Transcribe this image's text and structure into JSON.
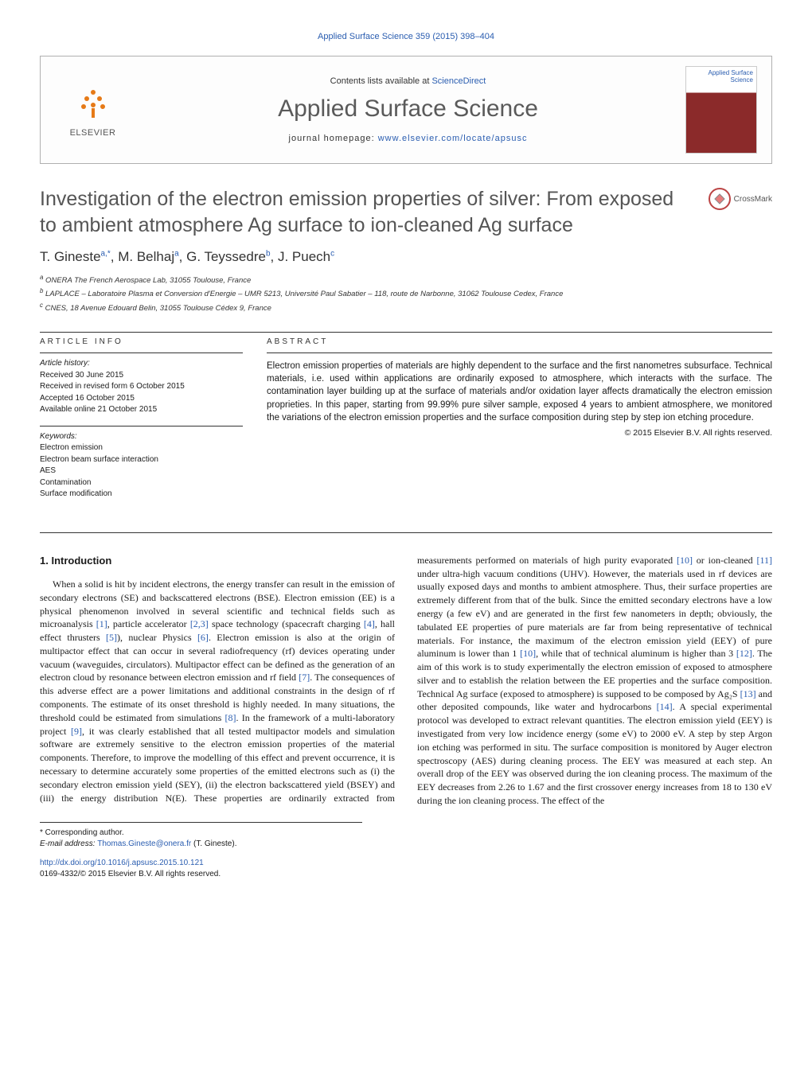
{
  "header_ref": "Applied Surface Science 359 (2015) 398–404",
  "banner": {
    "publisher": "ELSEVIER",
    "contents_prefix": "Contents lists available at ",
    "contents_link": "ScienceDirect",
    "journal": "Applied Surface Science",
    "homepage_prefix": "journal homepage: ",
    "homepage_url": "www.elsevier.com/locate/apsusc",
    "cover_label": "Applied\nSurface Science"
  },
  "crossmark": "CrossMark",
  "title": "Investigation of the electron emission properties of silver: From exposed to ambient atmosphere Ag surface to ion-cleaned Ag surface",
  "authors_html": "T. Gineste<sup>a,*</sup>, M. Belhaj<sup>a</sup>, G. Teyssedre<sup>b</sup>, J. Puech<sup>c</sup>",
  "affiliations": {
    "a": "ONERA The French Aerospace Lab, 31055 Toulouse, France",
    "b": "LAPLACE – Laboratoire Plasma et Conversion d'Energie – UMR 5213, Université Paul Sabatier – 118, route de Narbonne, 31062 Toulouse Cedex, France",
    "c": "CNES, 18 Avenue Edouard Belin, 31055 Toulouse Cédex 9, France"
  },
  "article_info": {
    "head": "ARTICLE INFO",
    "history_label": "Article history:",
    "received": "Received 30 June 2015",
    "revised": "Received in revised form 6 October 2015",
    "accepted": "Accepted 16 October 2015",
    "online": "Available online 21 October 2015",
    "keywords_label": "Keywords:",
    "keywords": [
      "Electron emission",
      "Electron beam surface interaction",
      "AES",
      "Contamination",
      "Surface modification"
    ]
  },
  "abstract": {
    "head": "ABSTRACT",
    "text": "Electron emission properties of materials are highly dependent to the surface and the first nanometres subsurface. Technical materials, i.e. used within applications are ordinarily exposed to atmosphere, which interacts with the surface. The contamination layer building up at the surface of materials and/or oxidation layer affects dramatically the electron emission proprieties. In this paper, starting from 99.99% pure silver sample, exposed 4 years to ambient atmosphere, we monitored the variations of the electron emission properties and the surface composition during step by step ion etching procedure.",
    "copyright": "© 2015 Elsevier B.V. All rights reserved."
  },
  "section1": {
    "heading": "1. Introduction",
    "p1a": "When a solid is hit by incident electrons, the energy transfer can result in the emission of secondary electrons (SE) and backscattered electrons (BSE). Electron emission (EE) is a physical phenomenon involved in several scientific and technical fields such as microanalysis ",
    "r1": "[1]",
    "p1b": ", particle accelerator ",
    "r23": "[2,3]",
    "p1c": " space technology (spacecraft charging ",
    "r4": "[4]",
    "p1d": ", hall effect thrusters ",
    "r5": "[5]",
    "p1e": "), nuclear Physics ",
    "r6": "[6]",
    "p1f": ". Electron emission is also at the origin of multipactor effect that can occur in several radiofrequency (rf) devices operating under vacuum (waveguides, circulators). Multipactor effect can be defined as the generation of an electron cloud by resonance between electron emission and rf field ",
    "r7": "[7]",
    "p1g": ". The consequences of this adverse effect are a power limitations and additional constraints in the design of rf components. The estimate of its onset threshold is highly needed. In many situations, the threshold could be estimated from simulations ",
    "r8": "[8]",
    "p1h": ". In the framework of a multi-laboratory project ",
    "r9": "[9]",
    "p1i": ", it was clearly established that all tested multipactor models and simulation software are extremely sensitive to the electron emission properties of the material components. Therefore, to improve the modelling of this effect and prevent occurrence, it is necessary to determine accurately some properties of the emitted electrons such as (i) the secondary electron emission yield (SEY), (ii) the electron ",
    "p2a": "backscattered yield (BSEY) and (iii) the energy distribution N(E). These properties are ordinarily extracted from measurements performed on materials of high purity evaporated ",
    "r10": "[10]",
    "p2b": " or ion-cleaned ",
    "r11": "[11]",
    "p2c": " under ultra-high vacuum conditions (UHV). However, the materials used in rf devices are usually exposed days and months to ambient atmosphere. Thus, their surface properties are extremely different from that of the bulk. Since the emitted secondary electrons have a low energy (a few eV) and are generated in the first few nanometers in depth; obviously, the tabulated EE properties of pure materials are far from being representative of technical materials. For instance, the maximum of the electron emission yield (EEY) of pure aluminum is lower than 1 ",
    "r10b": "[10]",
    "p2d": ", while that of technical aluminum is higher than 3 ",
    "r12": "[12]",
    "p2e": ". The aim of this work is to study experimentally the electron emission of exposed to atmosphere silver and to establish the relation between the EE properties and the surface composition. Technical Ag surface (exposed to atmosphere) is supposed to be composed by Ag₂S ",
    "r13": "[13]",
    "p2f": " and other deposited compounds, like water and hydrocarbons ",
    "r14": "[14]",
    "p2g": ". A special experimental protocol was developed to extract relevant quantities. The electron emission yield (EEY) is investigated from very low incidence energy (some eV) to 2000 eV. A step by step Argon ion etching was performed in situ. The surface composition is monitored by Auger electron spectroscopy (AES) during cleaning process. The EEY was measured at each step. An overall drop of the EEY was observed during the ion cleaning process. The maximum of the EEY decreases from 2.26 to 1.67 and the first crossover energy increases from 18 to 130 eV during the ion cleaning process. The effect of the"
  },
  "footer": {
    "corr_label": "* Corresponding author.",
    "email_label": "E-mail address: ",
    "email": "Thomas.Gineste@onera.fr",
    "email_who": " (T. Gineste).",
    "doi": "http://dx.doi.org/10.1016/j.apsusc.2015.10.121",
    "issn": "0169-4332/© 2015 Elsevier B.V. All rights reserved."
  },
  "colors": {
    "link": "#2a5db0",
    "title_gray": "#555555",
    "elsevier_orange": "#e67a17"
  }
}
